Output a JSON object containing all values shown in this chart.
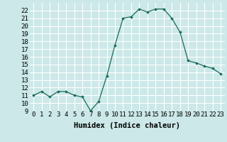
{
  "x": [
    0,
    1,
    2,
    3,
    4,
    5,
    6,
    7,
    8,
    9,
    10,
    11,
    12,
    13,
    14,
    15,
    16,
    17,
    18,
    19,
    20,
    21,
    22,
    23
  ],
  "y": [
    11.0,
    11.5,
    10.8,
    11.5,
    11.5,
    11.0,
    10.8,
    9.0,
    10.2,
    13.5,
    17.5,
    21.0,
    21.2,
    22.2,
    21.8,
    22.2,
    22.2,
    21.0,
    19.2,
    15.5,
    15.2,
    14.8,
    14.5,
    13.8
  ],
  "line_color": "#1a6b5a",
  "marker": "D",
  "marker_size": 1.8,
  "bg_color": "#cce8e8",
  "grid_color": "#ffffff",
  "xlabel": "Humidex (Indice chaleur)",
  "xlim": [
    -0.5,
    23.5
  ],
  "ylim": [
    9,
    23
  ],
  "yticks": [
    9,
    10,
    11,
    12,
    13,
    14,
    15,
    16,
    17,
    18,
    19,
    20,
    21,
    22
  ],
  "xticks": [
    0,
    1,
    2,
    3,
    4,
    5,
    6,
    7,
    8,
    9,
    10,
    11,
    12,
    13,
    14,
    15,
    16,
    17,
    18,
    19,
    20,
    21,
    22,
    23
  ],
  "xlabel_fontsize": 7.5,
  "tick_fontsize": 6.5
}
